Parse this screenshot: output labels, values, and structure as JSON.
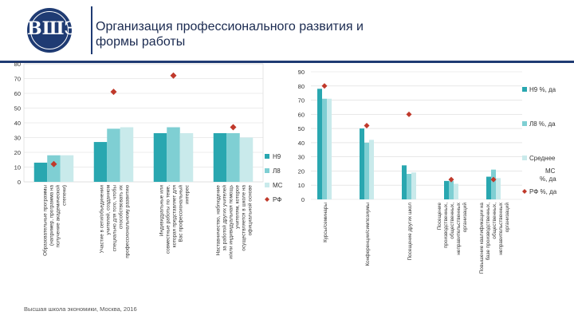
{
  "header": {
    "title_line1": "Организация профессионального развития и",
    "title_line2": "формы работы",
    "logo_text": "ВШЭ"
  },
  "footer": {
    "text": "Высшая школа экономики, Москва, 2016"
  },
  "colors": {
    "n9": "#29a7b0",
    "l8": "#7fcfd3",
    "ms": "#c9eaeb",
    "rf": "#c0392b",
    "brand": "#1f3b73"
  },
  "chart_data": [
    {
      "type": "bar",
      "ylim": [
        0,
        80
      ],
      "yticks": [
        "0",
        "10",
        "20",
        "30",
        "40",
        "50",
        "60",
        "70",
        "80"
      ],
      "categories": [
        "Образовательные программы (например, программа на получение академической степени)",
        "Участие в сети/объединении учителей, созданном специально для того, чтобы способствовать их профессиональному развитию",
        "Индивидуальные или совместные работы по теме, которая представляет для Вас профессиональный интерес",
        "Наставничество, наблюдение за работой других учителей и/или индивидуальная помощь учителям, которое осуществляется в школе на официальной основе"
      ],
      "series": [
        {
          "name": "Н9",
          "values": [
            13,
            27,
            33,
            33
          ]
        },
        {
          "name": "Л8",
          "values": [
            18,
            36,
            37,
            33
          ]
        },
        {
          "name": "МС",
          "values": [
            18,
            37,
            33,
            30
          ]
        },
        {
          "name": "РФ",
          "marker": "diamond",
          "values": [
            12,
            61,
            72,
            37
          ]
        }
      ],
      "legend": [
        "Н9",
        "Л8",
        "МС",
        "РФ"
      ]
    },
    {
      "type": "bar",
      "ylim": [
        0,
        90
      ],
      "yticks": [
        "0",
        "10",
        "20",
        "30",
        "40",
        "50",
        "60",
        "70",
        "80",
        "90"
      ],
      "categories": [
        "Курсы/семинары",
        "Конференции/симпозиумы",
        "Посещение других школ",
        "Посещение производственных, общественных, неправительственных организаций",
        "Повышение квалификации на базе производственных, общественных, неправительственных организаций"
      ],
      "series": [
        {
          "name": "Н9 %, да",
          "values": [
            78,
            50,
            24,
            13,
            16
          ]
        },
        {
          "name": "Л8 %, да",
          "values": [
            71,
            40,
            18,
            13,
            21
          ]
        },
        {
          "name": "Среднее МС %, да",
          "values": [
            71,
            42,
            19,
            11,
            15
          ]
        },
        {
          "name": "РФ %, да",
          "marker": "diamond",
          "values": [
            80,
            52,
            60,
            14,
            14
          ]
        }
      ],
      "legend": [
        "Н9 %, да",
        "Л8 %, да",
        "Среднее МС %, да",
        "РФ %, да"
      ]
    }
  ]
}
